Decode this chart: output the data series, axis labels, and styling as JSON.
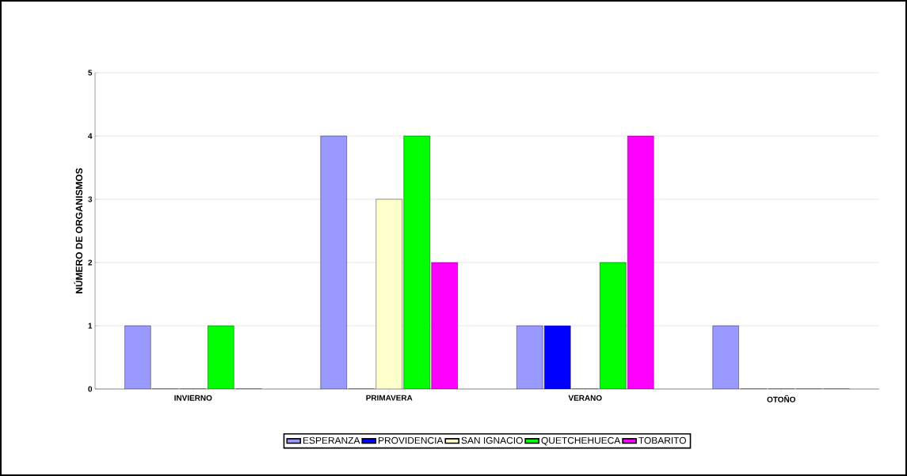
{
  "chart_data": {
    "type": "bar",
    "ylabel": "NÚMERO DE ORGANISMOS",
    "categories": [
      "INVIERNO",
      "PRIMAVERA",
      "VERANO",
      "OTOÑO"
    ],
    "series": [
      {
        "name": "ESPERANZA",
        "color": "#9999ff",
        "values": [
          1,
          4,
          1,
          1
        ]
      },
      {
        "name": "PROVIDENCIA",
        "color": "#0000ff",
        "values": [
          0,
          0,
          1,
          0
        ]
      },
      {
        "name": "SAN IGNACIO",
        "color": "#ffffcc",
        "values": [
          0,
          3,
          0,
          0
        ]
      },
      {
        "name": "QUETCHEHUECA",
        "color": "#00ff00",
        "values": [
          1,
          4,
          2,
          0
        ]
      },
      {
        "name": "TOBARITO",
        "color": "#ff00ff",
        "values": [
          0,
          2,
          4,
          0
        ]
      }
    ],
    "ylim": [
      0,
      5
    ],
    "yticks": [
      0,
      1,
      2,
      3,
      4,
      5
    ],
    "grid": "y",
    "legend": "bottom"
  }
}
